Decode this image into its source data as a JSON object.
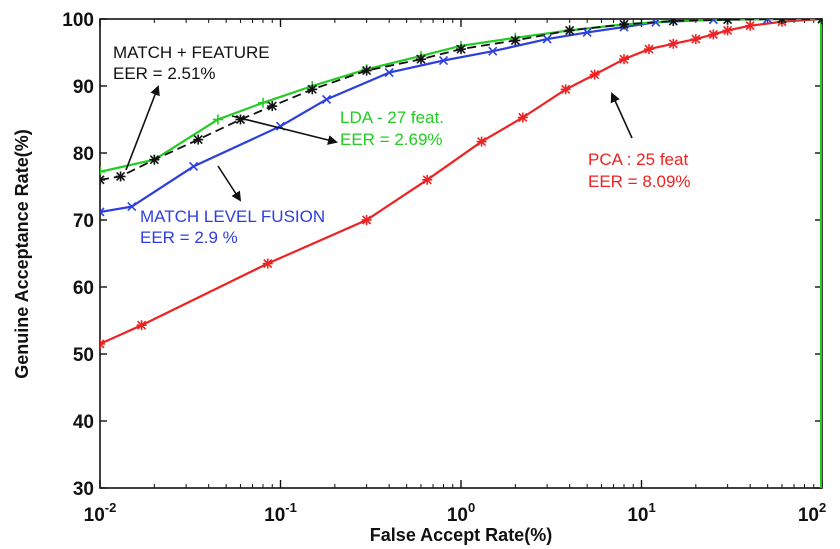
{
  "chart_data": {
    "type": "line",
    "xlabel": "False Accept Rate(%)",
    "ylabel": "Genuine Acceptance Rate(%)",
    "xscale": "log",
    "xlim": [
      0.01,
      100
    ],
    "ylim": [
      30,
      100
    ],
    "x_tick_labels": [
      {
        "base": "10",
        "exp": "-2",
        "value": 0.01
      },
      {
        "base": "10",
        "exp": "-1",
        "value": 0.1
      },
      {
        "base": "10",
        "exp": "0",
        "value": 1
      },
      {
        "base": "10",
        "exp": "1",
        "value": 10
      },
      {
        "base": "10",
        "exp": "2",
        "value": 100
      }
    ],
    "y_ticks": [
      30,
      40,
      50,
      60,
      70,
      80,
      90,
      100
    ],
    "grid": false,
    "series": [
      {
        "name": "MATCH + FEATURE",
        "color": "#111111",
        "style": "dashed",
        "marker": "star",
        "x": [
          0.01,
          0.013,
          0.02,
          0.035,
          0.06,
          0.09,
          0.15,
          0.3,
          0.6,
          1.0,
          2.0,
          4.0,
          8.0,
          15,
          30,
          60,
          100
        ],
        "y": [
          76.0,
          76.5,
          79.0,
          82.0,
          85.0,
          87.0,
          89.5,
          92.3,
          94.0,
          95.5,
          96.8,
          98.3,
          99.2,
          99.7,
          99.9,
          100.0,
          100.0
        ]
      },
      {
        "name": "LDA - 27 feat.",
        "color": "#22cc22",
        "style": "solid",
        "marker": "plus",
        "x": [
          0.01,
          0.02,
          0.045,
          0.08,
          0.15,
          0.3,
          0.6,
          1.0,
          2.0,
          4.0,
          8.0,
          15,
          30,
          60,
          100
        ],
        "y": [
          77.2,
          79.0,
          85.0,
          87.5,
          90.0,
          92.5,
          94.5,
          96.0,
          97.2,
          98.3,
          99.2,
          99.7,
          99.9,
          100.0,
          100.0
        ]
      },
      {
        "name": "MATCH LEVEL FUSION",
        "color": "#2e3fe0",
        "style": "solid",
        "marker": "x",
        "x": [
          0.01,
          0.015,
          0.033,
          0.1,
          0.18,
          0.4,
          0.8,
          1.5,
          3.0,
          5.0,
          8.0,
          12,
          25,
          50,
          100
        ],
        "y": [
          71.2,
          72.0,
          78.0,
          84.0,
          88.0,
          92.0,
          93.8,
          95.2,
          97.0,
          98.0,
          98.8,
          99.5,
          99.9,
          100.0,
          100.0
        ]
      },
      {
        "name": "PCA : 25 feat",
        "color": "#ee2222",
        "style": "solid",
        "marker": "star",
        "x": [
          0.01,
          0.017,
          0.085,
          0.3,
          0.65,
          1.3,
          2.2,
          3.8,
          5.5,
          8.0,
          11,
          15,
          20,
          25,
          30,
          40,
          60,
          100
        ],
        "y": [
          51.5,
          54.3,
          63.5,
          70.0,
          76.0,
          81.7,
          85.3,
          89.5,
          91.7,
          94.0,
          95.5,
          96.3,
          97.0,
          97.7,
          98.3,
          99.0,
          99.6,
          100.0
        ]
      }
    ],
    "annotations": [
      {
        "lines": [
          "MATCH + FEATURE",
          "EER = 2.51%"
        ],
        "color": "#111111"
      },
      {
        "lines": [
          "LDA - 27 feat.",
          "EER = 2.69%"
        ],
        "color": "#22cc22"
      },
      {
        "lines": [
          "MATCH LEVEL FUSION",
          "EER = 2.9 %"
        ],
        "color": "#2e3fe0"
      },
      {
        "lines": [
          "PCA : 25 feat",
          "EER = 8.09%"
        ],
        "color": "#ee2222"
      }
    ]
  }
}
